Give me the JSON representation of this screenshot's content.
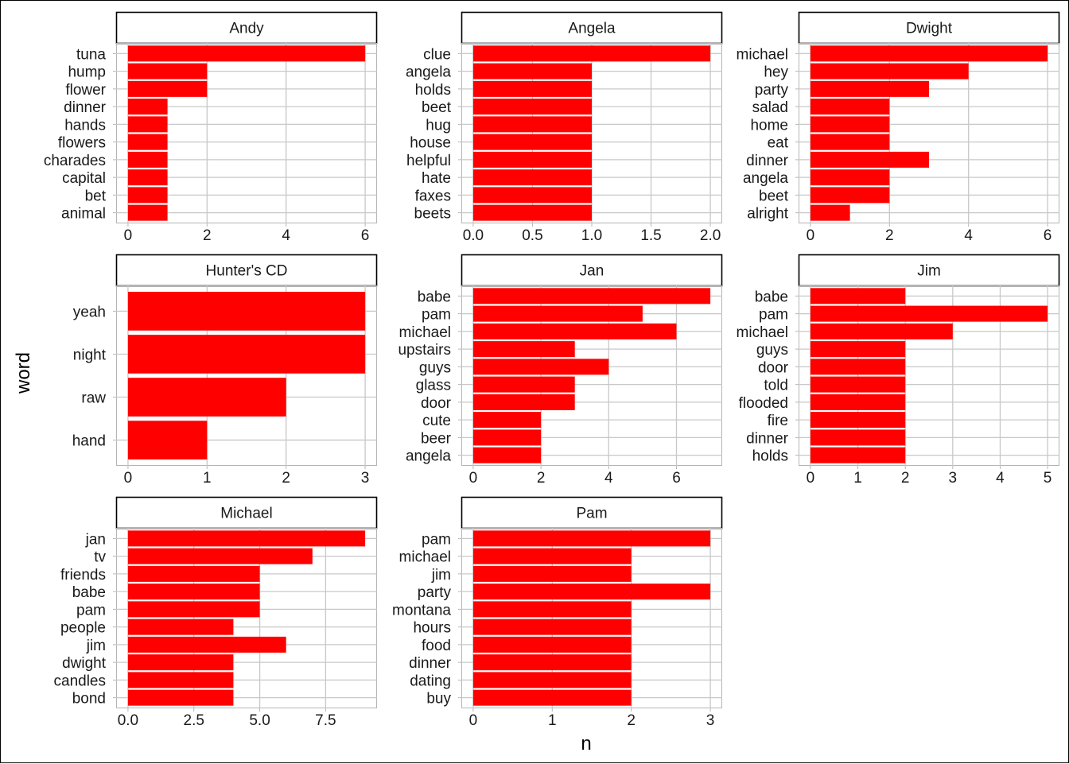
{
  "chart_data": {
    "type": "bar",
    "orientation": "horizontal",
    "facet": "wrap",
    "xlabel": "n",
    "ylabel": "word",
    "colors": {
      "bar": "#ff0000",
      "grid": "#c8c8c8",
      "strip_border": "#000000"
    },
    "grid": true,
    "panels": [
      {
        "title": "Andy",
        "categories": [
          "tuna",
          "hump",
          "flower",
          "dinner",
          "hands",
          "flowers",
          "charades",
          "capital",
          "bet",
          "animal"
        ],
        "values": [
          6,
          2,
          2,
          1,
          1,
          1,
          1,
          1,
          1,
          1
        ],
        "xlim": [
          -0.3,
          6.3
        ],
        "xticks": [
          0,
          2,
          4,
          6
        ],
        "xtick_labels": [
          "0",
          "2",
          "4",
          "6"
        ]
      },
      {
        "title": "Angela",
        "categories": [
          "clue",
          "angela",
          "holds",
          "beet",
          "hug",
          "house",
          "helpful",
          "hate",
          "faxes",
          "beets"
        ],
        "values": [
          2,
          1,
          1,
          1,
          1,
          1,
          1,
          1,
          1,
          1
        ],
        "xlim": [
          -0.1,
          2.1
        ],
        "xticks": [
          0,
          0.5,
          1,
          1.5,
          2
        ],
        "xtick_labels": [
          "0.0",
          "0.5",
          "1.0",
          "1.5",
          "2.0"
        ]
      },
      {
        "title": "Dwight",
        "categories": [
          "michael",
          "hey",
          "party",
          "salad",
          "home",
          "eat",
          "dinner",
          "angela",
          "beet",
          "alright"
        ],
        "values": [
          6,
          4,
          3,
          2,
          2,
          2,
          3,
          2,
          2,
          1
        ],
        "xlim": [
          -0.3,
          6.3
        ],
        "xticks": [
          0,
          2,
          4,
          6
        ],
        "xtick_labels": [
          "0",
          "2",
          "4",
          "6"
        ]
      },
      {
        "title": "Hunter's CD",
        "categories": [
          "yeah",
          "night",
          "raw",
          "hand"
        ],
        "values": [
          3,
          3,
          2,
          1
        ],
        "xlim": [
          -0.15,
          3.15
        ],
        "xticks": [
          0,
          1,
          2,
          3
        ],
        "xtick_labels": [
          "0",
          "1",
          "2",
          "3"
        ]
      },
      {
        "title": "Jan",
        "categories": [
          "babe",
          "pam",
          "michael",
          "upstairs",
          "guys",
          "glass",
          "door",
          "cute",
          "beer",
          "angela"
        ],
        "values": [
          7,
          5,
          6,
          3,
          4,
          3,
          3,
          2,
          2,
          2
        ],
        "xlim": [
          -0.35,
          7.35
        ],
        "xticks": [
          0,
          2,
          4,
          6
        ],
        "xtick_labels": [
          "0",
          "2",
          "4",
          "6"
        ]
      },
      {
        "title": "Jim",
        "categories": [
          "babe",
          "pam",
          "michael",
          "guys",
          "door",
          "told",
          "flooded",
          "fire",
          "dinner",
          "holds"
        ],
        "values": [
          2,
          5,
          3,
          2,
          2,
          2,
          2,
          2,
          2,
          2
        ],
        "xlim": [
          -0.25,
          5.25
        ],
        "xticks": [
          0,
          1,
          2,
          3,
          4,
          5
        ],
        "xtick_labels": [
          "0",
          "1",
          "2",
          "3",
          "4",
          "5"
        ]
      },
      {
        "title": "Michael",
        "categories": [
          "jan",
          "tv",
          "friends",
          "babe",
          "pam",
          "people",
          "jim",
          "dwight",
          "candles",
          "bond"
        ],
        "values": [
          9,
          7,
          5,
          5,
          5,
          4,
          6,
          4,
          4,
          4
        ],
        "xlim": [
          -0.45,
          9.45
        ],
        "xticks": [
          0,
          2.5,
          5,
          7.5
        ],
        "xtick_labels": [
          "0.0",
          "2.5",
          "5.0",
          "7.5"
        ]
      },
      {
        "title": "Pam",
        "categories": [
          "pam",
          "michael",
          "jim",
          "party",
          "montana",
          "hours",
          "food",
          "dinner",
          "dating",
          "buy"
        ],
        "values": [
          3,
          2,
          2,
          3,
          2,
          2,
          2,
          2,
          2,
          2
        ],
        "xlim": [
          -0.15,
          3.15
        ],
        "xticks": [
          0,
          1,
          2,
          3
        ],
        "xtick_labels": [
          "0",
          "1",
          "2",
          "3"
        ]
      }
    ]
  }
}
